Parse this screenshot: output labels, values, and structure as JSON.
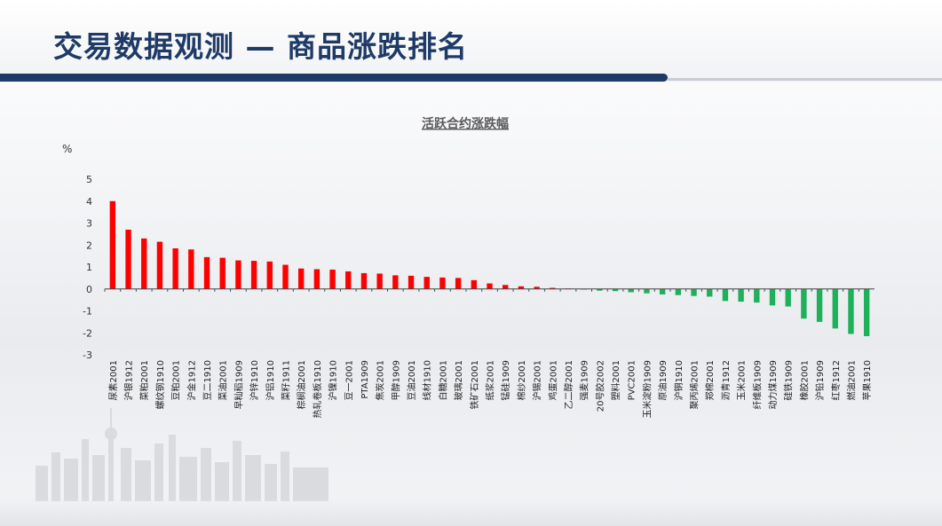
{
  "header": {
    "title": "交易数据观测 — 商品涨跌排名"
  },
  "colors": {
    "title": "#1e3a66",
    "rise": "#ff0000",
    "fall": "#1fb05a"
  },
  "chart_data": {
    "type": "bar",
    "title": "活跃合约涨跌幅",
    "ylabel": "%",
    "xlabel": "",
    "ylim": [
      -3,
      5
    ],
    "yticks": [
      5,
      4,
      3,
      2,
      1,
      0,
      -1,
      -2,
      -3
    ],
    "grid": false,
    "legend": "none",
    "categories": [
      "尿素2001",
      "沪银1912",
      "菜粕2001",
      "螺纹钢1910",
      "豆粕2001",
      "沪金1912",
      "豆二1910",
      "菜油2001",
      "早籼稻1909",
      "沪锌1910",
      "沪铝1910",
      "菜籽1911",
      "棕榈油2001",
      "热轧卷板1910",
      "沪镍1910",
      "豆一2001",
      "PTA1909",
      "焦炭2001",
      "甲醇1909",
      "豆油2001",
      "线材1910",
      "白糖2001",
      "玻璃2001",
      "铁矿石2001",
      "纸浆2001",
      "锰硅1909",
      "棉纱2001",
      "沪锡2001",
      "鸡蛋2001",
      "乙二醇2001",
      "强麦1909",
      "20号胶2002",
      "塑料2001",
      "PVC2001",
      "玉米淀粉1909",
      "原油1909",
      "沪铜1910",
      "聚丙烯2001",
      "郑棉2001",
      "沥青1912",
      "玉米2001",
      "纤维板1909",
      "动力煤1909",
      "硅铁1909",
      "橡胶2001",
      "沪铅1909",
      "红枣1912",
      "燃油2001",
      "苹果1910"
    ],
    "values": [
      4.0,
      2.7,
      2.3,
      2.15,
      1.85,
      1.8,
      1.45,
      1.42,
      1.3,
      1.28,
      1.25,
      1.1,
      0.93,
      0.9,
      0.88,
      0.8,
      0.72,
      0.7,
      0.62,
      0.6,
      0.55,
      0.52,
      0.5,
      0.4,
      0.25,
      0.18,
      0.12,
      0.1,
      0.05,
      0.02,
      -0.03,
      -0.08,
      -0.1,
      -0.15,
      -0.2,
      -0.25,
      -0.28,
      -0.32,
      -0.35,
      -0.55,
      -0.58,
      -0.62,
      -0.75,
      -0.8,
      -1.35,
      -1.5,
      -1.8,
      -2.05,
      -2.15
    ]
  }
}
